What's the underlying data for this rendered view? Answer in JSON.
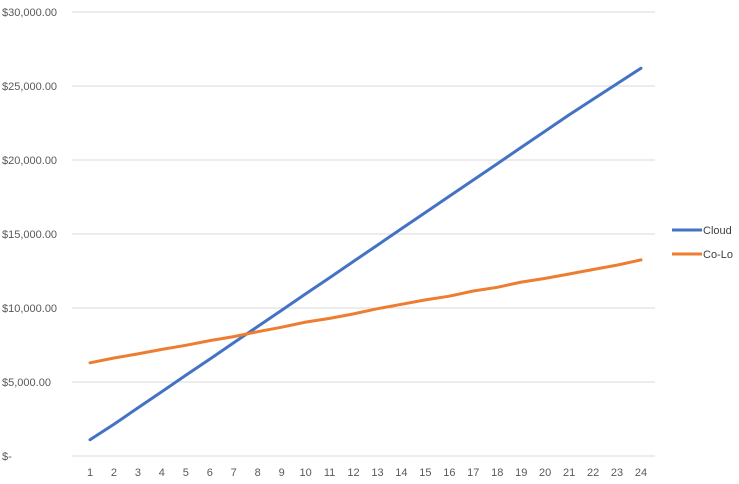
{
  "chart_data": {
    "type": "line",
    "title": "",
    "xlabel": "",
    "ylabel": "",
    "x": [
      1,
      2,
      3,
      4,
      5,
      6,
      7,
      8,
      9,
      10,
      11,
      12,
      13,
      14,
      15,
      16,
      17,
      18,
      19,
      20,
      21,
      22,
      23,
      24
    ],
    "ylim": [
      0,
      30000
    ],
    "y_ticks": [
      0,
      5000,
      10000,
      15000,
      20000,
      25000,
      30000
    ],
    "y_tick_labels": [
      "$-",
      "$5,000.00",
      "$10,000.00",
      "$15,000.00",
      "$20,000.00",
      "$25,000.00",
      "$30,000.00"
    ],
    "grid": true,
    "legend_position": "right",
    "series": [
      {
        "name": "Cloud",
        "color": "#4472C4",
        "values": [
          1100,
          2150,
          3250,
          4350,
          5450,
          6550,
          7650,
          8750,
          9850,
          10950,
          12050,
          13150,
          14250,
          15350,
          16450,
          17550,
          18650,
          19750,
          20850,
          21950,
          23050,
          24100,
          25150,
          26200
        ]
      },
      {
        "name": "Co-Lo",
        "color": "#ED7D31",
        "values": [
          6300,
          6620,
          6900,
          7200,
          7480,
          7800,
          8070,
          8400,
          8700,
          9050,
          9300,
          9600,
          9950,
          10250,
          10550,
          10800,
          11150,
          11400,
          11750,
          12000,
          12300,
          12600,
          12900,
          13250
        ]
      }
    ]
  }
}
